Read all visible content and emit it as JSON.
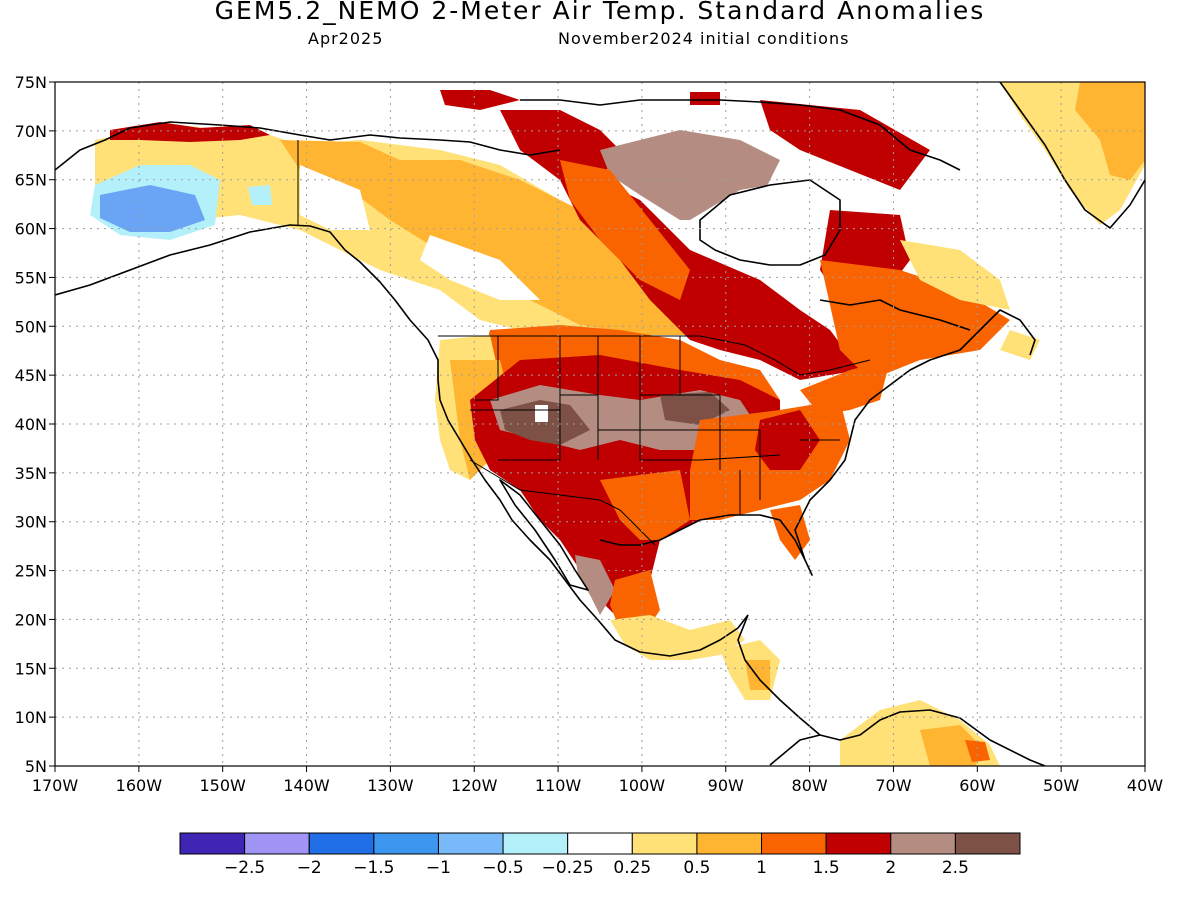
{
  "title": "GEM5.2_NEMO 2-Meter Air Temp. Standard Anomalies",
  "subtitle_left": "Apr2025",
  "subtitle_right": "November2024 initial conditions",
  "map": {
    "projection": "cylindrical-equidistant",
    "lon_range": [
      -170,
      -40
    ],
    "lat_range": [
      5,
      75
    ],
    "grid": "dotted",
    "lat_ticks": [
      "75N",
      "70N",
      "65N",
      "60N",
      "55N",
      "50N",
      "45N",
      "40N",
      "35N",
      "30N",
      "25N",
      "20N",
      "15N",
      "10N",
      "5N"
    ],
    "lon_ticks": [
      "170W",
      "160W",
      "150W",
      "140W",
      "130W",
      "120W",
      "110W",
      "100W",
      "90W",
      "80W",
      "70W",
      "60W",
      "50W",
      "40W"
    ]
  },
  "colorbar": {
    "colors": [
      "#3f25b4",
      "#a095f5",
      "#206ee6",
      "#3c96f0",
      "#78b9fa",
      "#b4f0fa",
      "#ffffff",
      "#ffe178",
      "#ffb432",
      "#fa6400",
      "#c00000",
      "#b48c82",
      "#7d5146"
    ],
    "labels": [
      "−2.5",
      "−2",
      "−1.5",
      "−1",
      "−0.5",
      "−0.25",
      "0.25",
      "0.5",
      "1",
      "1.5",
      "2",
      "2.5"
    ]
  },
  "anomaly_colors": {
    "cool_strong": "#6aa4f5",
    "cool": "#b4f0fa",
    "neutral": "#ffffff",
    "warm_025": "#ffe178",
    "warm_05": "#ffb432",
    "warm_1": "#fa6400",
    "warm_15": "#c00000",
    "warm_2": "#b48c82",
    "warm_25": "#7d5146"
  }
}
